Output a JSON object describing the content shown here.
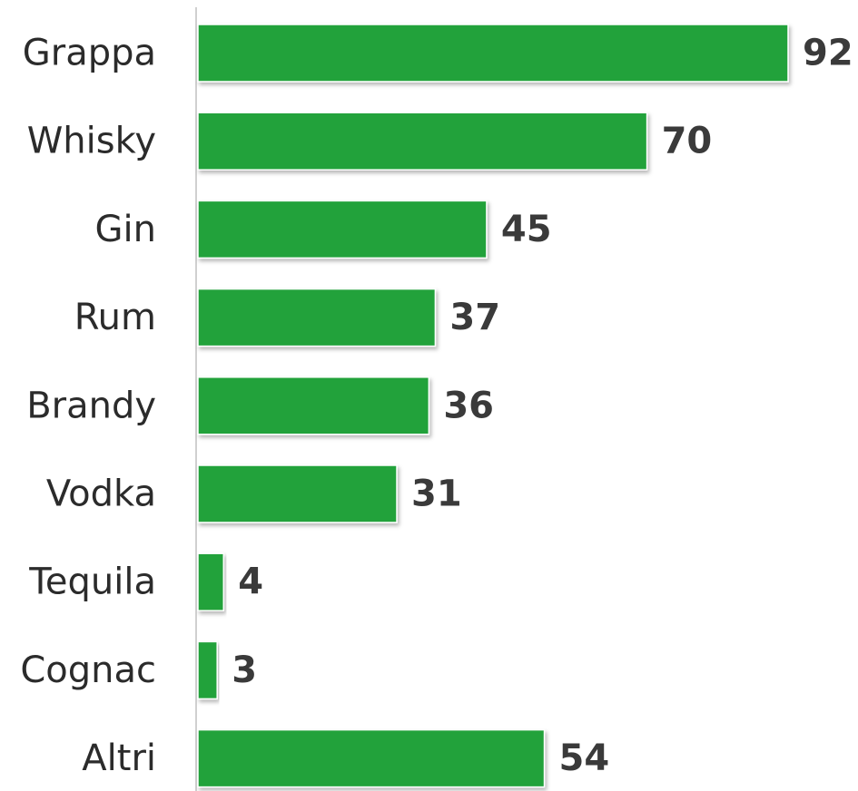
{
  "chart_data": {
    "type": "bar",
    "orientation": "horizontal",
    "categories": [
      "Grappa",
      "Whisky",
      "Gin",
      "Rum",
      "Brandy",
      "Vodka",
      "Tequila",
      "Cognac",
      "Altri"
    ],
    "values": [
      92,
      70,
      45,
      37,
      36,
      31,
      4,
      3,
      54
    ],
    "title": "",
    "xlabel": "",
    "ylabel": "",
    "xlim": [
      0,
      92
    ],
    "grid": false,
    "data_labels": true,
    "bar_color": "#22a23a",
    "axis_color": "#d0d0d0",
    "label_color": "#2b2b2b",
    "value_label_color": "#3a3a3a"
  }
}
